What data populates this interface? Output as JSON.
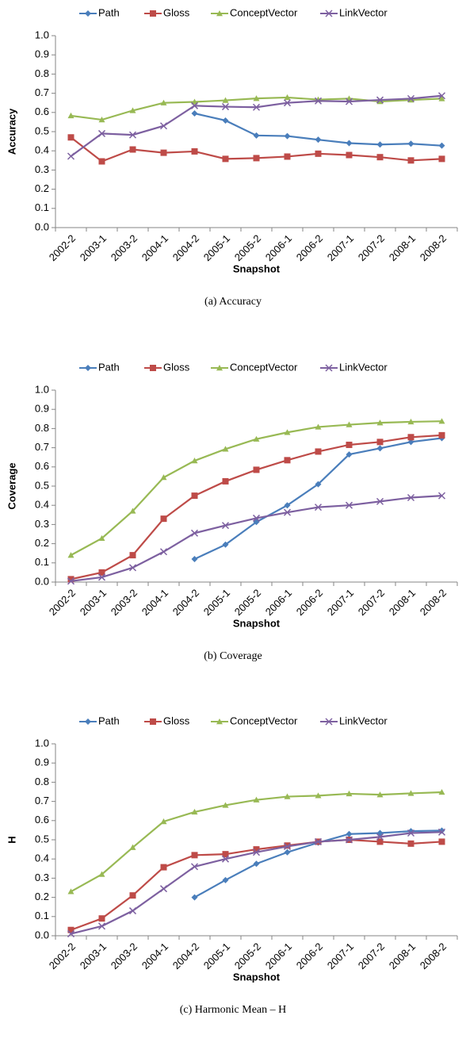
{
  "chart_data": [
    {
      "type": "line",
      "caption": "(a) Accuracy",
      "xlabel": "Snapshot",
      "ylabel": "Accuracy",
      "categories": [
        "2002-2",
        "2003-1",
        "2003-2",
        "2004-1",
        "2004-2",
        "2005-1",
        "2005-2",
        "2006-1",
        "2006-2",
        "2007-1",
        "2007-2",
        "2008-1",
        "2008-2"
      ],
      "ylim": [
        0,
        1
      ],
      "yticks": [
        {
          "value": 0,
          "label": "0.0"
        },
        0.1,
        0.2,
        0.3,
        0.4,
        0.5,
        0.6,
        0.7,
        0.8,
        0.9,
        {
          "value": 1,
          "label": "1.0"
        }
      ],
      "legend": "top",
      "series": [
        {
          "name": "Path",
          "color": "#4a7ebb",
          "marker": "diamond",
          "values": [
            null,
            null,
            null,
            null,
            0.595,
            0.558,
            0.48,
            0.477,
            0.458,
            0.44,
            0.433,
            0.437,
            0.427
          ]
        },
        {
          "name": "Gloss",
          "color": "#be4b48",
          "marker": "square",
          "values": [
            0.47,
            0.345,
            0.407,
            0.39,
            0.397,
            0.358,
            0.362,
            0.37,
            0.385,
            0.378,
            0.367,
            0.35,
            0.358
          ]
        },
        {
          "name": "ConceptVector",
          "color": "#98b954",
          "marker": "triangle",
          "values": [
            0.583,
            0.562,
            0.61,
            0.65,
            0.655,
            0.663,
            0.673,
            0.678,
            0.667,
            0.672,
            0.657,
            0.665,
            0.672
          ]
        },
        {
          "name": "LinkVector",
          "color": "#7d60a0",
          "marker": "x",
          "values": [
            0.372,
            0.49,
            0.483,
            0.53,
            0.635,
            0.63,
            0.627,
            0.65,
            0.66,
            0.657,
            0.665,
            0.672,
            0.687
          ]
        }
      ]
    },
    {
      "type": "line",
      "caption": "(b) Coverage",
      "xlabel": "Snapshot",
      "ylabel": "Coverage",
      "categories": [
        "2002-2",
        "2003-1",
        "2003-2",
        "2004-1",
        "2004-2",
        "2005-1",
        "2005-2",
        "2006-1",
        "2006-2",
        "2007-1",
        "2007-2",
        "2008-1",
        "2008-2"
      ],
      "ylim": [
        0,
        1
      ],
      "yticks": [
        {
          "value": 0,
          "label": "0.0"
        },
        0.1,
        0.2,
        0.3,
        0.4,
        0.5,
        0.6,
        0.7,
        0.8,
        0.9,
        {
          "value": 1,
          "label": "1.0"
        }
      ],
      "legend": "top",
      "series": [
        {
          "name": "Path",
          "color": "#4a7ebb",
          "marker": "diamond",
          "values": [
            null,
            null,
            null,
            null,
            0.12,
            0.195,
            0.313,
            0.4,
            0.51,
            0.665,
            0.697,
            0.73,
            0.75
          ]
        },
        {
          "name": "Gloss",
          "color": "#be4b48",
          "marker": "square",
          "values": [
            0.015,
            0.05,
            0.14,
            0.33,
            0.45,
            0.525,
            0.585,
            0.635,
            0.68,
            0.715,
            0.73,
            0.755,
            0.765
          ]
        },
        {
          "name": "ConceptVector",
          "color": "#98b954",
          "marker": "triangle",
          "values": [
            0.14,
            0.228,
            0.37,
            0.545,
            0.632,
            0.693,
            0.745,
            0.78,
            0.808,
            0.82,
            0.83,
            0.835,
            0.838
          ]
        },
        {
          "name": "LinkVector",
          "color": "#7d60a0",
          "marker": "x",
          "values": [
            0.005,
            0.025,
            0.075,
            0.158,
            0.255,
            0.295,
            0.333,
            0.363,
            0.39,
            0.4,
            0.42,
            0.44,
            0.45
          ]
        }
      ]
    },
    {
      "type": "line",
      "caption": "(c) Harmonic Mean – H",
      "xlabel": "Snapshot",
      "ylabel": "H",
      "categories": [
        "2002-2",
        "2003-1",
        "2003-2",
        "2004-1",
        "2004-2",
        "2005-1",
        "2005-2",
        "2006-1",
        "2006-2",
        "2007-1",
        "2007-2",
        "2008-1",
        "2008-2"
      ],
      "ylim": [
        0,
        1
      ],
      "yticks": [
        {
          "value": 0,
          "label": "0.0"
        },
        0.1,
        0.2,
        0.3,
        0.4,
        0.5,
        0.6,
        0.7,
        0.8,
        0.9,
        {
          "value": 1,
          "label": "1.0"
        }
      ],
      "legend": "top",
      "series": [
        {
          "name": "Path",
          "color": "#4a7ebb",
          "marker": "diamond",
          "values": [
            null,
            null,
            null,
            null,
            0.2,
            0.29,
            0.375,
            0.435,
            0.485,
            0.53,
            0.535,
            0.545,
            0.548
          ]
        },
        {
          "name": "Gloss",
          "color": "#be4b48",
          "marker": "square",
          "values": [
            0.03,
            0.09,
            0.21,
            0.357,
            0.42,
            0.425,
            0.45,
            0.47,
            0.49,
            0.5,
            0.49,
            0.48,
            0.49
          ]
        },
        {
          "name": "ConceptVector",
          "color": "#98b954",
          "marker": "triangle",
          "values": [
            0.23,
            0.32,
            0.46,
            0.595,
            0.645,
            0.68,
            0.708,
            0.725,
            0.73,
            0.74,
            0.735,
            0.742,
            0.748
          ]
        },
        {
          "name": "LinkVector",
          "color": "#7d60a0",
          "marker": "x",
          "values": [
            0.01,
            0.05,
            0.13,
            0.245,
            0.36,
            0.4,
            0.435,
            0.465,
            0.49,
            0.5,
            0.515,
            0.535,
            0.54
          ]
        }
      ]
    }
  ]
}
